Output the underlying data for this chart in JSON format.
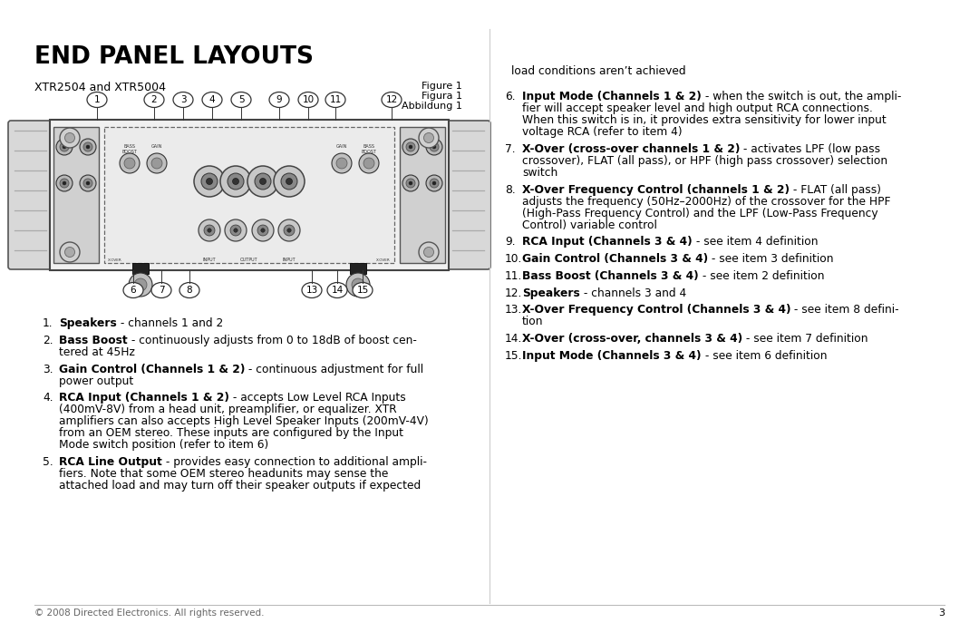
{
  "title": "END PANEL LAYOUTS",
  "subtitle": "XTR2504 and XTR5004",
  "figure_labels": [
    "Figure 1",
    "Figura 1",
    "Abbildung 1"
  ],
  "bg_color": "#ffffff",
  "top_numbers": [
    "1",
    "2",
    "3",
    "4",
    "5",
    "9",
    "10",
    "11",
    "12"
  ],
  "bottom_numbers": [
    "6",
    "7",
    "8",
    "13",
    "14",
    "15"
  ],
  "left_items": [
    {
      "num": "1.",
      "lines": [
        [
          {
            "bold": true,
            "text": "Speakers"
          },
          {
            "bold": false,
            "text": " - channels 1 and 2"
          }
        ]
      ]
    },
    {
      "num": "2.",
      "lines": [
        [
          {
            "bold": true,
            "text": "Bass Boost"
          },
          {
            "bold": false,
            "text": " - continuously adjusts from 0 to 18dB of boost cen-"
          }
        ],
        [
          {
            "bold": false,
            "text": "tered at 45Hz"
          }
        ]
      ]
    },
    {
      "num": "3.",
      "lines": [
        [
          {
            "bold": true,
            "text": "Gain Control (Channels 1 & 2)"
          },
          {
            "bold": false,
            "text": " - continuous adjustment for full"
          }
        ],
        [
          {
            "bold": false,
            "text": "power output"
          }
        ]
      ]
    },
    {
      "num": "4.",
      "lines": [
        [
          {
            "bold": true,
            "text": "RCA Input (Channels 1 & 2)"
          },
          {
            "bold": false,
            "text": " - accepts Low Level RCA Inputs"
          }
        ],
        [
          {
            "bold": false,
            "text": "(400mV-8V) from a head unit, preamplifier, or equalizer. XTR"
          }
        ],
        [
          {
            "bold": false,
            "text": "amplifiers can also accepts High Level Speaker Inputs (200mV-4V)"
          }
        ],
        [
          {
            "bold": false,
            "text": "from an OEM stereo. These inputs are configured by the Input"
          }
        ],
        [
          {
            "bold": false,
            "text": "Mode switch position (refer to item 6)"
          }
        ]
      ]
    },
    {
      "num": "5.",
      "lines": [
        [
          {
            "bold": true,
            "text": "RCA Line Output"
          },
          {
            "bold": false,
            "text": " - provides easy connection to additional ampli-"
          }
        ],
        [
          {
            "bold": false,
            "text": "fiers. Note that some OEM stereo headunits may sense the"
          }
        ],
        [
          {
            "bold": false,
            "text": "attached load and may turn off their speaker outputs if expected"
          }
        ]
      ]
    }
  ],
  "right_intro": "load conditions aren’t achieved",
  "right_items": [
    {
      "num": "6.",
      "lines": [
        [
          {
            "bold": true,
            "text": "Input Mode (Channels 1 & 2)"
          },
          {
            "bold": false,
            "text": " - when the switch is out, the ampli-"
          }
        ],
        [
          {
            "bold": false,
            "text": "fier will accept speaker level and high output RCA connections."
          }
        ],
        [
          {
            "bold": false,
            "text": "When this switch is in, it provides extra sensitivity for lower input"
          }
        ],
        [
          {
            "bold": false,
            "text": "voltage RCA (refer to item 4)"
          }
        ]
      ]
    },
    {
      "num": "7.",
      "lines": [
        [
          {
            "bold": true,
            "text": "X-Over (cross-over channels 1 & 2)"
          },
          {
            "bold": false,
            "text": " - activates LPF (low pass"
          }
        ],
        [
          {
            "bold": false,
            "text": "crossover), FLAT (all pass), or HPF (high pass crossover) selection"
          }
        ],
        [
          {
            "bold": false,
            "text": "switch"
          }
        ]
      ]
    },
    {
      "num": "8.",
      "lines": [
        [
          {
            "bold": true,
            "text": "X-Over Frequency Control (channels 1 & 2)"
          },
          {
            "bold": false,
            "text": " - FLAT (all pass)"
          }
        ],
        [
          {
            "bold": false,
            "text": "adjusts the frequency (50Hz–2000Hz) of the crossover for the HPF"
          }
        ],
        [
          {
            "bold": false,
            "text": "(High-Pass Frequency Control) and the LPF (Low-Pass Frequency"
          }
        ],
        [
          {
            "bold": false,
            "text": "Control) variable control"
          }
        ]
      ]
    },
    {
      "num": "9.",
      "lines": [
        [
          {
            "bold": true,
            "text": "RCA Input (Channels 3 & 4)"
          },
          {
            "bold": false,
            "text": " - see item 4 definition"
          }
        ]
      ]
    },
    {
      "num": "10.",
      "lines": [
        [
          {
            "bold": true,
            "text": "Gain Control (Channels 3 & 4)"
          },
          {
            "bold": false,
            "text": " - see item 3 definition"
          }
        ]
      ]
    },
    {
      "num": "11.",
      "lines": [
        [
          {
            "bold": true,
            "text": "Bass Boost (Channels 3 & 4)"
          },
          {
            "bold": false,
            "text": " - see item 2 definition"
          }
        ]
      ]
    },
    {
      "num": "12.",
      "lines": [
        [
          {
            "bold": true,
            "text": "Speakers"
          },
          {
            "bold": false,
            "text": " - channels 3 and 4"
          }
        ]
      ]
    },
    {
      "num": "13.",
      "lines": [
        [
          {
            "bold": true,
            "text": "X-Over Frequency Control (Channels 3 & 4)"
          },
          {
            "bold": false,
            "text": " - see item 8 defini-"
          }
        ],
        [
          {
            "bold": false,
            "text": "tion"
          }
        ]
      ]
    },
    {
      "num": "14.",
      "lines": [
        [
          {
            "bold": true,
            "text": "X-Over (cross-over, channels 3 & 4)"
          },
          {
            "bold": false,
            "text": " - see item 7 definition"
          }
        ]
      ]
    },
    {
      "num": "15.",
      "lines": [
        [
          {
            "bold": true,
            "text": "Input Mode (Channels 3 & 4)"
          },
          {
            "bold": false,
            "text": " - see item 6 definition"
          }
        ]
      ]
    }
  ],
  "footer": "© 2008 Directed Electronics. All rights reserved.",
  "page_num": "3"
}
